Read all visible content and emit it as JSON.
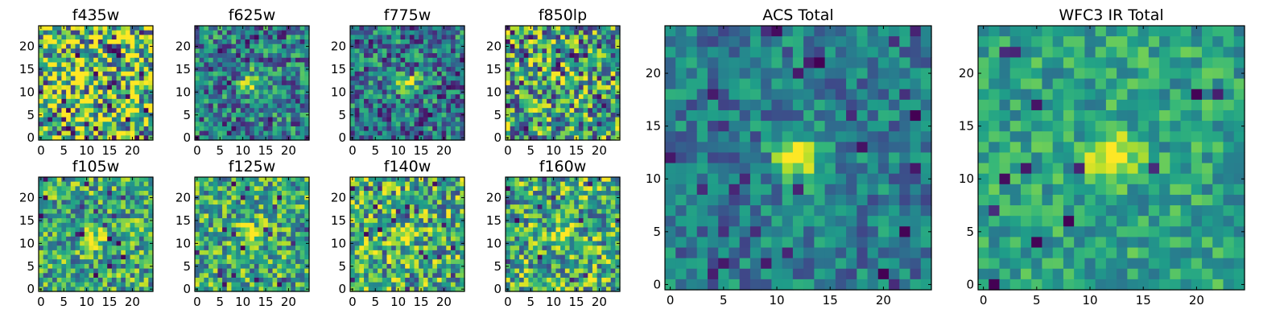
{
  "chart_data": [
    {
      "type": "heatmap",
      "title": "f435w",
      "xticks": [
        "0",
        "5",
        "10",
        "15",
        "20"
      ],
      "yticks": [
        "0",
        "5",
        "10",
        "15",
        "20"
      ],
      "xlim": [
        0,
        24
      ],
      "ylim": [
        0,
        24
      ],
      "grid": 25,
      "blob": {
        "x": 12,
        "y": 12,
        "s": 0
      },
      "mean": 0.72,
      "noise": 0.55,
      "cold": 0.06
    },
    {
      "type": "heatmap",
      "title": "f625w",
      "xticks": [
        "0",
        "5",
        "10",
        "15",
        "20"
      ],
      "yticks": [
        "0",
        "5",
        "10",
        "15",
        "20"
      ],
      "xlim": [
        0,
        24
      ],
      "ylim": [
        0,
        24
      ],
      "grid": 25,
      "blob": {
        "x": 12,
        "y": 12,
        "s": 0.55
      },
      "mean": 0.42,
      "noise": 0.34,
      "cold": 0.05
    },
    {
      "type": "heatmap",
      "title": "f775w",
      "xticks": [
        "0",
        "5",
        "10",
        "15",
        "20"
      ],
      "yticks": [
        "0",
        "5",
        "10",
        "15",
        "20"
      ],
      "xlim": [
        0,
        24
      ],
      "ylim": [
        0,
        24
      ],
      "grid": 25,
      "blob": {
        "x": 12,
        "y": 12,
        "s": 0.6
      },
      "mean": 0.4,
      "noise": 0.34,
      "cold": 0.05
    },
    {
      "type": "heatmap",
      "title": "f850lp",
      "xticks": [
        "0",
        "5",
        "10",
        "15",
        "20"
      ],
      "yticks": [
        "0",
        "5",
        "10",
        "15",
        "20"
      ],
      "xlim": [
        0,
        24
      ],
      "ylim": [
        0,
        24
      ],
      "grid": 25,
      "blob": {
        "x": 12,
        "y": 13,
        "s": 0.35
      },
      "mean": 0.58,
      "noise": 0.45,
      "cold": 0.06
    },
    {
      "type": "heatmap",
      "title": "f105w",
      "xticks": [
        "0",
        "5",
        "10",
        "15",
        "20"
      ],
      "yticks": [
        "0",
        "5",
        "10",
        "15",
        "20"
      ],
      "xlim": [
        0,
        24
      ],
      "ylim": [
        0,
        24
      ],
      "grid": 25,
      "blob": {
        "x": 12,
        "y": 11,
        "s": 0.4
      },
      "mean": 0.6,
      "noise": 0.35,
      "cold": 0.03
    },
    {
      "type": "heatmap",
      "title": "f125w",
      "xticks": [
        "0",
        "5",
        "10",
        "15",
        "20"
      ],
      "yticks": [
        "0",
        "5",
        "10",
        "15",
        "20"
      ],
      "xlim": [
        0,
        24
      ],
      "ylim": [
        0,
        24
      ],
      "grid": 25,
      "blob": {
        "x": 12,
        "y": 12,
        "s": 0.45
      },
      "mean": 0.6,
      "noise": 0.35,
      "cold": 0.03
    },
    {
      "type": "heatmap",
      "title": "f140w",
      "xticks": [
        "0",
        "5",
        "10",
        "15",
        "20"
      ],
      "yticks": [
        "0",
        "5",
        "10",
        "15",
        "20"
      ],
      "xlim": [
        0,
        24
      ],
      "ylim": [
        0,
        24
      ],
      "grid": 25,
      "blob": {
        "x": 12,
        "y": 12,
        "s": 0.3
      },
      "mean": 0.62,
      "noise": 0.4,
      "cold": 0.04
    },
    {
      "type": "heatmap",
      "title": "f160w",
      "xticks": [
        "0",
        "5",
        "10",
        "15",
        "20"
      ],
      "yticks": [
        "0",
        "5",
        "10",
        "15",
        "20"
      ],
      "xlim": [
        0,
        24
      ],
      "ylim": [
        0,
        24
      ],
      "grid": 25,
      "blob": {
        "x": 12,
        "y": 12,
        "s": 0.45
      },
      "mean": 0.62,
      "noise": 0.38,
      "cold": 0.03
    },
    {
      "type": "heatmap",
      "title": "ACS Total",
      "xticks": [
        "0",
        "5",
        "10",
        "15",
        "20"
      ],
      "yticks": [
        "0",
        "5",
        "10",
        "15",
        "20"
      ],
      "xlim": [
        0,
        24
      ],
      "ylim": [
        0,
        24
      ],
      "grid": 25,
      "blob": {
        "x": 12,
        "y": 12,
        "s": 0.6
      },
      "mean": 0.42,
      "noise": 0.22,
      "cold": 0.04
    },
    {
      "type": "heatmap",
      "title": "WFC3 IR Total",
      "xticks": [
        "0",
        "5",
        "10",
        "15",
        "20"
      ],
      "yticks": [
        "0",
        "5",
        "10",
        "15",
        "20"
      ],
      "xlim": [
        0,
        24
      ],
      "ylim": [
        0,
        24
      ],
      "grid": 25,
      "blob": {
        "x": 12,
        "y": 12,
        "s": 0.55
      },
      "mean": 0.58,
      "noise": 0.2,
      "cold": 0.02
    }
  ],
  "colormap": [
    "#440154",
    "#482878",
    "#3e4989",
    "#31688e",
    "#26828e",
    "#1f9e89",
    "#35b779",
    "#6ece58",
    "#b5de2b",
    "#fde725"
  ],
  "frame_color": "#000000"
}
